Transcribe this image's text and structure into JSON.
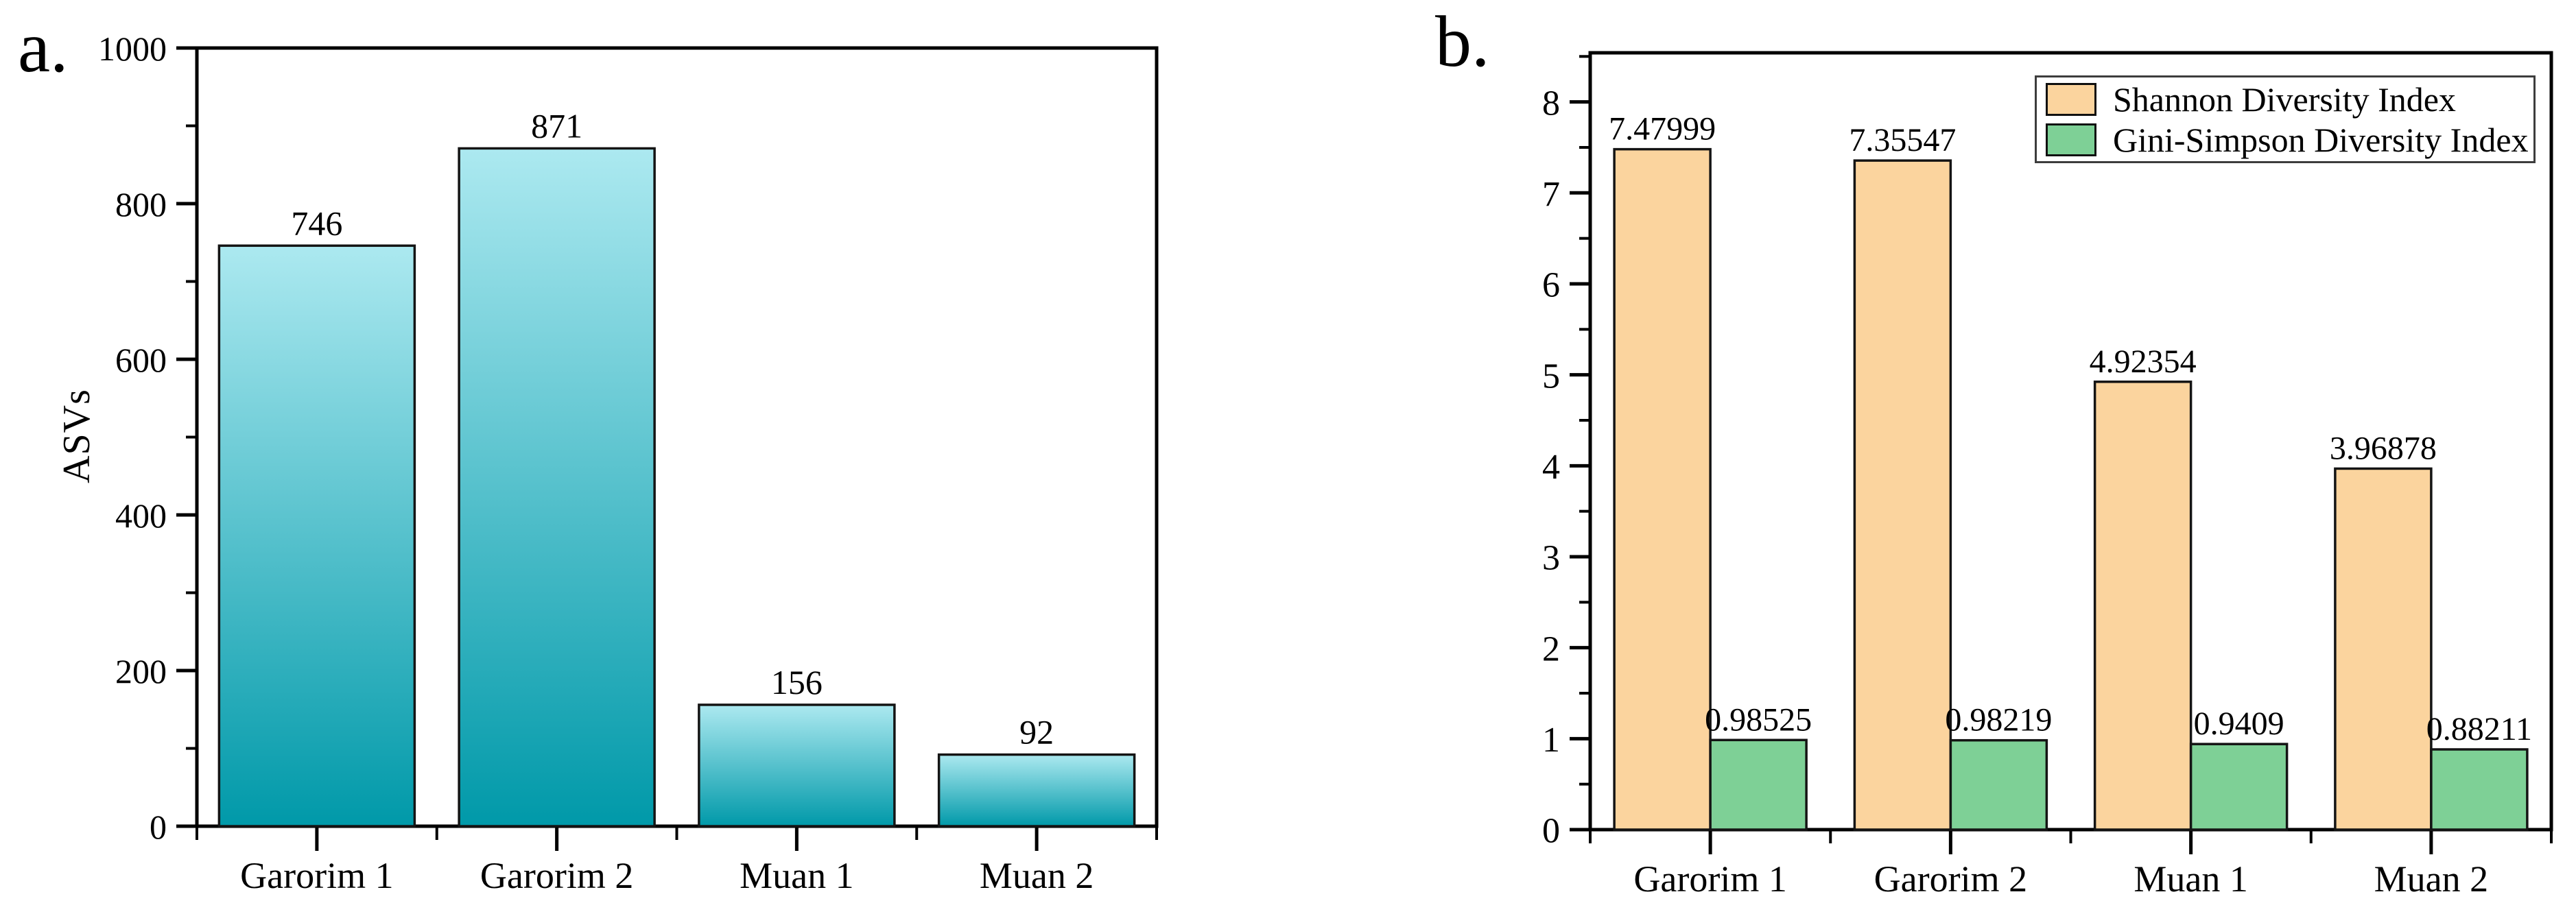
{
  "chart_data": [
    {
      "type": "bar",
      "panel_label": "a.",
      "categories": [
        "Garorim 1",
        "Garorim 2",
        "Muan 1",
        "Muan 2"
      ],
      "values": [
        746,
        871,
        156,
        92
      ],
      "bar_labels": [
        "746",
        "871",
        "156",
        "92"
      ],
      "title": "",
      "xlabel": "",
      "ylabel": "ASVs",
      "ylim": [
        0,
        1000
      ],
      "yticks": [
        0,
        200,
        400,
        600,
        800,
        1000
      ],
      "yminorticks": [
        100,
        300,
        500,
        700,
        900
      ],
      "grid": "off",
      "bar_fill_gradient_top": "#ace9f0",
      "bar_fill_gradient_bottom": "#0099a9",
      "bar_border_color": "#141414",
      "axis_color": "#000000"
    },
    {
      "type": "grouped_bar",
      "panel_label": "b.",
      "categories": [
        "Garorim 1",
        "Garorim 2",
        "Muan 1",
        "Muan 2"
      ],
      "series": [
        {
          "name": "Shannon Diversity Index",
          "color": "#fbd49e",
          "values": [
            7.47999,
            7.35547,
            4.92354,
            3.96878
          ],
          "labels": [
            "7.47999",
            "7.35547",
            "4.92354",
            "3.96878"
          ]
        },
        {
          "name": "Gini-Simpson Diversity Index",
          "color": "#7ed096",
          "values": [
            0.98525,
            0.98219,
            0.9409,
            0.88211
          ],
          "labels": [
            "0.98525",
            "0.98219",
            "0.9409",
            "0.88211"
          ]
        }
      ],
      "title": "",
      "xlabel": "",
      "ylabel": "",
      "ylim": [
        0,
        8.54
      ],
      "yticks": [
        0,
        1,
        2,
        3,
        4,
        5,
        6,
        7,
        8
      ],
      "yminorticks": [
        0.5,
        1.5,
        2.5,
        3.5,
        4.5,
        5.5,
        6.5,
        7.5,
        8.5
      ],
      "grid": "off",
      "legend_position": "top-right",
      "bar_border_color": "#141414",
      "axis_color": "#000000"
    }
  ]
}
